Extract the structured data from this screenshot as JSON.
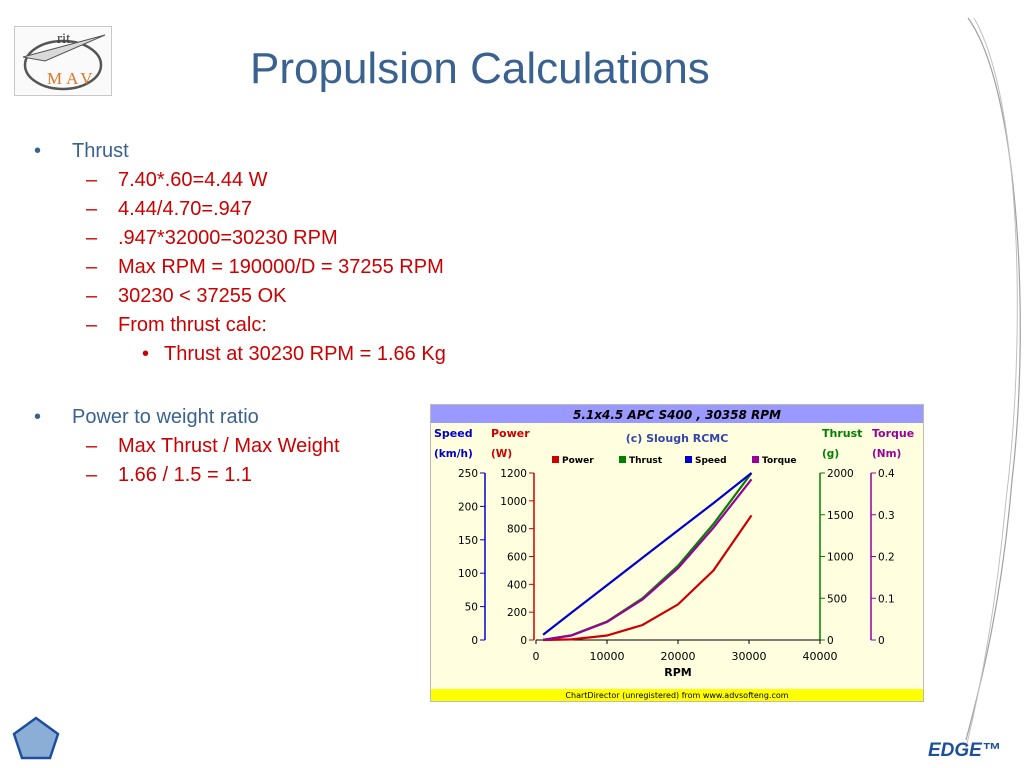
{
  "logo": {
    "top_text": "rit",
    "bottom_text": "MAV"
  },
  "slide": {
    "title": "Propulsion Calculations"
  },
  "bullets": [
    {
      "level": 1,
      "mark": "•",
      "text": "Thrust"
    },
    {
      "level": 2,
      "mark": "–",
      "text": "7.40*.60=4.44 W"
    },
    {
      "level": 2,
      "mark": "–",
      "text": "4.44/4.70=.947"
    },
    {
      "level": 2,
      "mark": "–",
      "text": ".947*32000=30230 RPM"
    },
    {
      "level": 2,
      "mark": "–",
      "text": "Max RPM = 190000/D = 37255 RPM"
    },
    {
      "level": 2,
      "mark": "–",
      "text": "30230 < 37255 OK"
    },
    {
      "level": 2,
      "mark": "–",
      "text": "From thrust calc:"
    },
    {
      "level": 3,
      "mark": "•",
      "text": "Thrust at 30230 RPM = 1.66 Kg"
    },
    {
      "level": 1,
      "mark": "•",
      "text": "Power to weight ratio"
    },
    {
      "level": 2,
      "mark": "–",
      "text": "Max Thrust / Max Weight"
    },
    {
      "level": 2,
      "mark": "–",
      "text": "1.66 / 1.5 = 1.1"
    }
  ],
  "chart_data": {
    "type": "line",
    "title": "5.1x4.5 APC S400 , 30358 RPM",
    "subtitle": "(c) Slough RCMC",
    "xlabel": "RPM",
    "x_ticks": [
      0,
      10000,
      20000,
      30000,
      40000
    ],
    "xlim": [
      0,
      40000
    ],
    "footer": "ChartDirector (unregistered) from www.advsofteng.com",
    "legend_position": "top",
    "axes": [
      {
        "name": "Speed",
        "unit": "(km/h)",
        "color": "#0000cc",
        "side": "left-outer",
        "ticks": [
          0,
          50,
          100,
          150,
          200,
          250
        ],
        "range": [
          0,
          250
        ]
      },
      {
        "name": "Power",
        "unit": "(W)",
        "color": "#cc0000",
        "side": "left-inner",
        "ticks": [
          0,
          200,
          400,
          600,
          800,
          1000,
          1200
        ],
        "range": [
          0,
          1200
        ]
      },
      {
        "name": "Thrust",
        "unit": "(g)",
        "color": "#008000",
        "side": "right-inner",
        "ticks": [
          0,
          500,
          1000,
          1500,
          2000
        ],
        "range": [
          0,
          2000
        ]
      },
      {
        "name": "Torque",
        "unit": "(Nm)",
        "color": "#990099",
        "side": "right-outer",
        "ticks": [
          0,
          0.1,
          0.2,
          0.3,
          0.4
        ],
        "range": [
          0,
          0.4
        ]
      }
    ],
    "series": [
      {
        "name": "Power",
        "axis": "Power",
        "color": "#cc0000",
        "x": [
          1000,
          5000,
          10000,
          15000,
          20000,
          25000,
          30358
        ],
        "y": [
          0,
          4,
          32,
          108,
          256,
          500,
          895
        ]
      },
      {
        "name": "Thrust",
        "axis": "Thrust",
        "color": "#008000",
        "x": [
          1000,
          5000,
          10000,
          15000,
          20000,
          25000,
          30358
        ],
        "y": [
          2,
          56,
          222,
          500,
          889,
          1389,
          2000
        ]
      },
      {
        "name": "Speed",
        "axis": "Speed",
        "color": "#0000cc",
        "x": [
          1000,
          5000,
          10000,
          15000,
          20000,
          25000,
          30358
        ],
        "y": [
          8,
          41,
          82,
          123,
          164,
          205,
          250
        ]
      },
      {
        "name": "Torque",
        "axis": "Torque",
        "color": "#990099",
        "x": [
          1000,
          5000,
          10000,
          15000,
          20000,
          25000,
          30358
        ],
        "y": [
          0.0004,
          0.0107,
          0.043,
          0.097,
          0.172,
          0.269,
          0.385
        ]
      }
    ]
  },
  "footer": {
    "brand": "EDGE™"
  },
  "colors": {
    "title": "#3a6290",
    "bullet_sub": "#cc0000",
    "chart_bg": "#ffffe0",
    "chart_frame": "#9999ff",
    "footer_bar": "#ffff00",
    "brand": "#1d4f9c"
  }
}
